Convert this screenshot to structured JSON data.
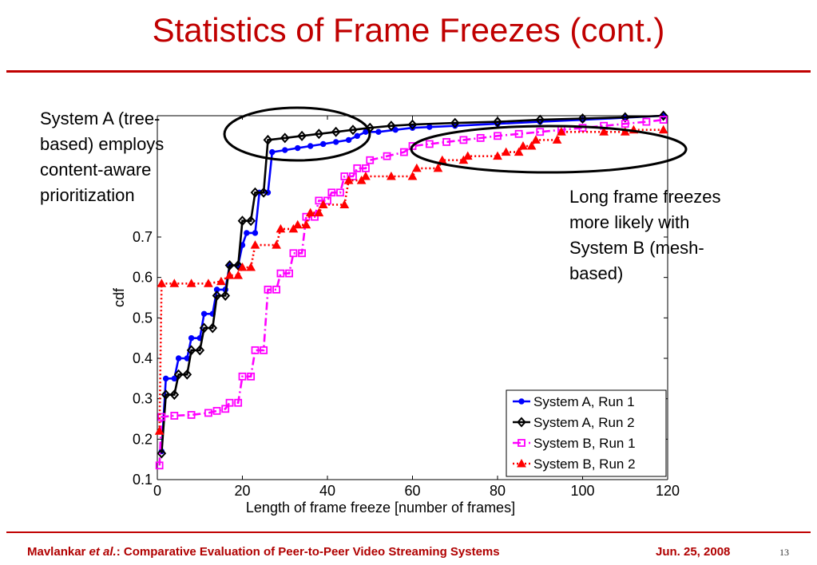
{
  "slide": {
    "title": "Statistics of Frame Freezes (cont.)",
    "callout_a": [
      "System A (tree-",
      "based) employs",
      "content-aware",
      "prioritization"
    ],
    "callout_b": [
      "Long frame freezes",
      "more likely with",
      "System B (mesh-",
      "based)"
    ],
    "footer": {
      "author": "Mavlankar ",
      "etal": "et al.",
      "paper": ": Comparative Evaluation of Peer-to-Peer Video Streaming Systems",
      "date": "Jun. 25, 2008",
      "page": "13"
    }
  },
  "chart_data": {
    "type": "line",
    "xlabel": "Length of frame freeze [number of frames]",
    "ylabel": "cdf",
    "xlim": [
      0,
      120
    ],
    "ylim": [
      0.1,
      1.0
    ],
    "xticks": [
      0,
      20,
      40,
      60,
      80,
      100,
      120
    ],
    "yticks": [
      0.1,
      0.2,
      0.3,
      0.4,
      0.5,
      0.6,
      0.7
    ],
    "grid": false,
    "legend_position": "bottom-right",
    "series": [
      {
        "name": "System A, Run 1",
        "color": "#0000ff",
        "marker": "circle",
        "dash": "",
        "points": [
          [
            1,
            0.17
          ],
          [
            2,
            0.35
          ],
          [
            4,
            0.35
          ],
          [
            5,
            0.4
          ],
          [
            7,
            0.4
          ],
          [
            8,
            0.45
          ],
          [
            10,
            0.45
          ],
          [
            11,
            0.51
          ],
          [
            13,
            0.51
          ],
          [
            14,
            0.57
          ],
          [
            16,
            0.57
          ],
          [
            17,
            0.63
          ],
          [
            19,
            0.63
          ],
          [
            20,
            0.68
          ],
          [
            21,
            0.71
          ],
          [
            23,
            0.71
          ],
          [
            24,
            0.81
          ],
          [
            26,
            0.81
          ],
          [
            27,
            0.91
          ],
          [
            30,
            0.915
          ],
          [
            33,
            0.92
          ],
          [
            36,
            0.925
          ],
          [
            39,
            0.93
          ],
          [
            42,
            0.935
          ],
          [
            45,
            0.94
          ],
          [
            47,
            0.95
          ],
          [
            49,
            0.96
          ],
          [
            52,
            0.96
          ],
          [
            56,
            0.965
          ],
          [
            60,
            0.97
          ],
          [
            64,
            0.972
          ],
          [
            70,
            0.975
          ],
          [
            80,
            0.98
          ],
          [
            90,
            0.985
          ],
          [
            100,
            0.99
          ],
          [
            110,
            0.995
          ],
          [
            119,
            1.0
          ]
        ]
      },
      {
        "name": "System A, Run 2",
        "color": "#000000",
        "marker": "diamond",
        "dash": "",
        "points": [
          [
            1,
            0.165
          ],
          [
            2,
            0.31
          ],
          [
            4,
            0.31
          ],
          [
            5,
            0.36
          ],
          [
            7,
            0.36
          ],
          [
            8,
            0.42
          ],
          [
            10,
            0.42
          ],
          [
            11,
            0.475
          ],
          [
            13,
            0.475
          ],
          [
            14,
            0.555
          ],
          [
            16,
            0.555
          ],
          [
            17,
            0.63
          ],
          [
            19,
            0.63
          ],
          [
            20,
            0.74
          ],
          [
            22,
            0.74
          ],
          [
            23,
            0.81
          ],
          [
            25,
            0.81
          ],
          [
            26,
            0.94
          ],
          [
            30,
            0.945
          ],
          [
            34,
            0.95
          ],
          [
            38,
            0.955
          ],
          [
            42,
            0.96
          ],
          [
            46,
            0.965
          ],
          [
            50,
            0.97
          ],
          [
            55,
            0.975
          ],
          [
            60,
            0.978
          ],
          [
            70,
            0.982
          ],
          [
            80,
            0.985
          ],
          [
            90,
            0.99
          ],
          [
            100,
            0.993
          ],
          [
            110,
            0.996
          ],
          [
            119,
            1.0
          ]
        ]
      },
      {
        "name": "System B, Run 1",
        "color": "#ff00ff",
        "marker": "square",
        "dash": "10,4,2,4",
        "points": [
          [
            0.5,
            0.135
          ],
          [
            1,
            0.255
          ],
          [
            4,
            0.258
          ],
          [
            8,
            0.26
          ],
          [
            12,
            0.265
          ],
          [
            14,
            0.27
          ],
          [
            16,
            0.275
          ],
          [
            17,
            0.29
          ],
          [
            19,
            0.29
          ],
          [
            20,
            0.355
          ],
          [
            22,
            0.355
          ],
          [
            23,
            0.42
          ],
          [
            25,
            0.42
          ],
          [
            26,
            0.57
          ],
          [
            28,
            0.57
          ],
          [
            29,
            0.61
          ],
          [
            31,
            0.61
          ],
          [
            32,
            0.66
          ],
          [
            34,
            0.66
          ],
          [
            35,
            0.75
          ],
          [
            37,
            0.75
          ],
          [
            38,
            0.79
          ],
          [
            40,
            0.79
          ],
          [
            41,
            0.81
          ],
          [
            43,
            0.81
          ],
          [
            44,
            0.85
          ],
          [
            46,
            0.85
          ],
          [
            47,
            0.87
          ],
          [
            49,
            0.87
          ],
          [
            50,
            0.89
          ],
          [
            54,
            0.9
          ],
          [
            58,
            0.91
          ],
          [
            60,
            0.925
          ],
          [
            64,
            0.93
          ],
          [
            68,
            0.935
          ],
          [
            72,
            0.94
          ],
          [
            76,
            0.945
          ],
          [
            80,
            0.95
          ],
          [
            85,
            0.955
          ],
          [
            90,
            0.96
          ],
          [
            95,
            0.965
          ],
          [
            100,
            0.97
          ],
          [
            105,
            0.975
          ],
          [
            110,
            0.98
          ],
          [
            115,
            0.985
          ],
          [
            119,
            0.99
          ]
        ]
      },
      {
        "name": "System B, Run 2",
        "color": "#ff0000",
        "marker": "triangle",
        "dash": "2,3",
        "points": [
          [
            0.5,
            0.22
          ],
          [
            1,
            0.585
          ],
          [
            4,
            0.585
          ],
          [
            8,
            0.585
          ],
          [
            12,
            0.585
          ],
          [
            15,
            0.59
          ],
          [
            17,
            0.605
          ],
          [
            19,
            0.605
          ],
          [
            20,
            0.625
          ],
          [
            22,
            0.625
          ],
          [
            23,
            0.68
          ],
          [
            28,
            0.68
          ],
          [
            29,
            0.72
          ],
          [
            32,
            0.72
          ],
          [
            33,
            0.73
          ],
          [
            35,
            0.73
          ],
          [
            36,
            0.76
          ],
          [
            38,
            0.76
          ],
          [
            39,
            0.78
          ],
          [
            44,
            0.78
          ],
          [
            45,
            0.84
          ],
          [
            48,
            0.84
          ],
          [
            49,
            0.85
          ],
          [
            55,
            0.85
          ],
          [
            60,
            0.85
          ],
          [
            61,
            0.87
          ],
          [
            66,
            0.87
          ],
          [
            67,
            0.89
          ],
          [
            72,
            0.89
          ],
          [
            73,
            0.9
          ],
          [
            80,
            0.9
          ],
          [
            82,
            0.91
          ],
          [
            85,
            0.91
          ],
          [
            86,
            0.925
          ],
          [
            88,
            0.925
          ],
          [
            89,
            0.94
          ],
          [
            94,
            0.94
          ],
          [
            95,
            0.96
          ],
          [
            105,
            0.96
          ],
          [
            110,
            0.96
          ],
          [
            112,
            0.965
          ],
          [
            119,
            0.965
          ]
        ]
      }
    ]
  }
}
